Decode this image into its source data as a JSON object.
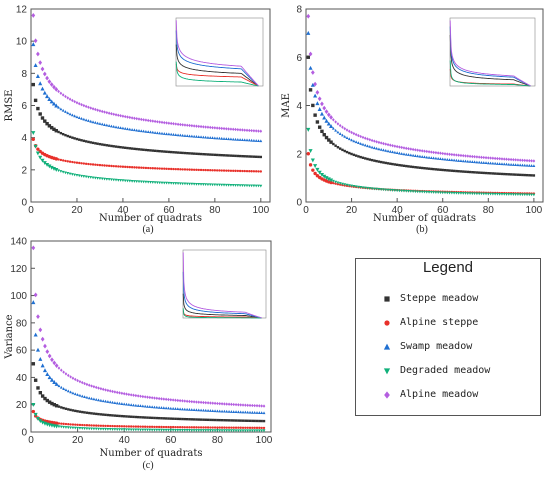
{
  "legend": {
    "title": "Legend",
    "entries": [
      {
        "name": "Steppe meadow",
        "color": "#333333",
        "marker": "square"
      },
      {
        "name": "Alpine steppe",
        "color": "#e8302a",
        "marker": "circle"
      },
      {
        "name": "Swamp meadow",
        "color": "#1f6fd1",
        "marker": "triangle-up"
      },
      {
        "name": "Degraded meadow",
        "color": "#10b07a",
        "marker": "triangle-down"
      },
      {
        "name": "Alpine meadow",
        "color": "#b45ee0",
        "marker": "diamond"
      }
    ]
  },
  "chart_data": [
    {
      "type": "scatter",
      "caption": "(a)",
      "xlabel": "Number of quadrats",
      "ylabel": "RMSE",
      "xlim": [
        0,
        104
      ],
      "ylim": [
        0,
        12
      ],
      "xticks": [
        "0",
        "20",
        "40",
        "60",
        "80",
        "100"
      ],
      "yticks": [
        "0",
        "2",
        "4",
        "6",
        "8",
        "10",
        "12"
      ],
      "xtick_values": [
        0,
        20,
        40,
        60,
        80,
        100
      ],
      "ytick_values": [
        0,
        2,
        4,
        6,
        8,
        10,
        12
      ],
      "series": [
        {
          "name": "Steppe meadow",
          "values_at_x": {
            "1": 7.3,
            "100": 2.8
          }
        },
        {
          "name": "Alpine steppe",
          "values_at_x": {
            "1": 3.9,
            "100": 1.9
          }
        },
        {
          "name": "Swamp meadow",
          "values_at_x": {
            "1": 9.8,
            "100": 3.8
          }
        },
        {
          "name": "Degraded meadow",
          "values_at_x": {
            "1": 4.3,
            "100": 1.0
          }
        },
        {
          "name": "Alpine meadow",
          "values_at_x": {
            "1": 11.6,
            "100": 4.4
          }
        }
      ],
      "inset": {
        "type": "line",
        "xlim": [
          0,
          400
        ],
        "ylim": [
          0,
          12
        ]
      }
    },
    {
      "type": "scatter",
      "caption": "(b)",
      "xlabel": "Number of quadrats",
      "ylabel": "MAE",
      "xlim": [
        0,
        104
      ],
      "ylim": [
        0,
        8
      ],
      "xticks": [
        "0",
        "20",
        "40",
        "60",
        "80",
        "100"
      ],
      "yticks": [
        "0",
        "2",
        "4",
        "6",
        "8"
      ],
      "xtick_values": [
        0,
        20,
        40,
        60,
        80,
        100
      ],
      "ytick_values": [
        0,
        2,
        4,
        6,
        8
      ],
      "series": [
        {
          "name": "Steppe meadow",
          "values_at_x": {
            "1": 6.0,
            "100": 1.1
          }
        },
        {
          "name": "Alpine steppe",
          "values_at_x": {
            "1": 2.0,
            "100": 0.35
          }
        },
        {
          "name": "Swamp meadow",
          "values_at_x": {
            "1": 7.0,
            "100": 1.5
          }
        },
        {
          "name": "Degraded meadow",
          "values_at_x": {
            "1": 3.0,
            "100": 0.3
          }
        },
        {
          "name": "Alpine meadow",
          "values_at_x": {
            "1": 7.7,
            "100": 1.7
          }
        }
      ],
      "inset": {
        "type": "line",
        "xlim": [
          0,
          400
        ],
        "ylim": [
          0,
          8
        ]
      }
    },
    {
      "type": "scatter",
      "caption": "(c)",
      "xlabel": "Number of quadrats",
      "ylabel": "Variance",
      "xlim": [
        0,
        103
      ],
      "ylim": [
        0,
        140
      ],
      "xticks": [
        "0",
        "20",
        "40",
        "60",
        "80",
        "100"
      ],
      "yticks": [
        "0",
        "20",
        "40",
        "60",
        "80",
        "100",
        "120",
        "140"
      ],
      "xtick_values": [
        0,
        20,
        40,
        60,
        80,
        100
      ],
      "ytick_values": [
        0,
        20,
        40,
        60,
        80,
        100,
        120,
        140
      ],
      "series": [
        {
          "name": "Steppe meadow",
          "values_at_x": {
            "1": 50,
            "100": 8
          }
        },
        {
          "name": "Alpine steppe",
          "values_at_x": {
            "1": 15,
            "100": 3
          }
        },
        {
          "name": "Swamp meadow",
          "values_at_x": {
            "1": 95,
            "100": 14
          }
        },
        {
          "name": "Degraded meadow",
          "values_at_x": {
            "1": 20,
            "100": 1
          }
        },
        {
          "name": "Alpine meadow",
          "values_at_x": {
            "1": 135,
            "100": 19
          }
        }
      ],
      "inset": {
        "type": "line",
        "xlim": [
          0,
          400
        ],
        "ylim": [
          0,
          140
        ]
      }
    }
  ]
}
